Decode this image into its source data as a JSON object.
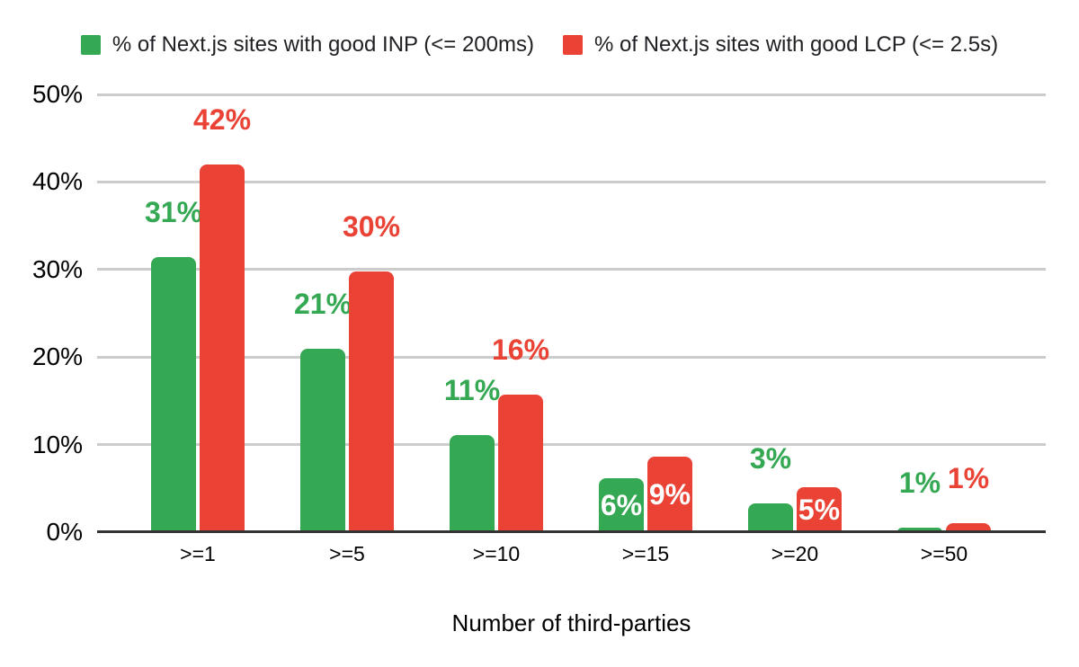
{
  "chart_data": {
    "type": "bar",
    "title": "",
    "xlabel": "Number of third-parties",
    "ylabel": "",
    "categories": [
      ">=1",
      ">=5",
      ">=10",
      ">=15",
      ">=20",
      ">=50"
    ],
    "series": [
      {
        "name": "% of Next.js sites with good INP (<= 200ms)",
        "color": "#34a853",
        "values": [
          31.4,
          21,
          11.1,
          6.2,
          3.3,
          0.5
        ],
        "labels": [
          "31%",
          "21%",
          "11%",
          "6%",
          "3%",
          "1%"
        ],
        "label_placement": [
          "above",
          "above",
          "above",
          "inside",
          "above",
          "above"
        ]
      },
      {
        "name": "% of Next.js sites with good LCP (<= 2.5s)",
        "color": "#ea4335",
        "values": [
          42,
          29.8,
          15.7,
          8.6,
          5.1,
          1
        ],
        "labels": [
          "42%",
          "30%",
          "16%",
          "9%",
          "5%",
          "1%"
        ],
        "label_placement": [
          "above",
          "above",
          "above",
          "inside",
          "inside",
          "above"
        ]
      }
    ],
    "y_ticks": [
      "0%",
      "10%",
      "20%",
      "30%",
      "40%",
      "50%"
    ],
    "ylim": [
      0,
      50
    ],
    "grid": true,
    "legend_position": "top",
    "colors": {
      "gridline": "#cccccc",
      "axis_line": "#333333",
      "tick_text": "#000000",
      "legend_text": "#202124",
      "background": "#ffffff",
      "inside_label_text": "#ffffff"
    }
  }
}
